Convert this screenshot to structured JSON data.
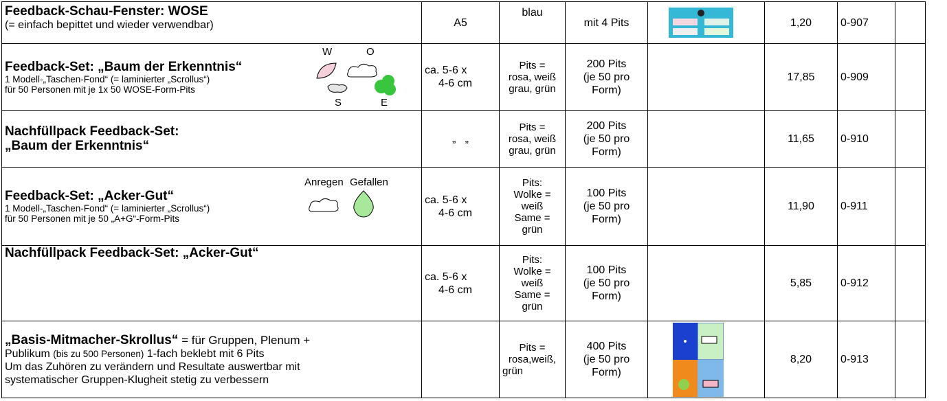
{
  "table": {
    "rows": [
      {
        "title": "Feedback-Schau-Fenster: WOSE",
        "details": [
          "(= einfach bepittet und wieder verwendbar)"
        ],
        "size": [
          "A5"
        ],
        "colors": [
          "blau"
        ],
        "pits": [
          "mit 4 Pits"
        ],
        "price": "1,20",
        "code": "0-907"
      },
      {
        "title": "Feedback-Set: „Baum der Erkenntnis“",
        "details": [
          "1 Modell-„Taschen-Fond“ (= laminierter „Scrollus“)",
          "für 50 Personen mit je 1x 50 WOSE-Form-Pits"
        ],
        "icon_labels": [
          "W",
          "O",
          "S",
          "E"
        ],
        "size": [
          "ca. 5-6 x",
          "4-6 cm"
        ],
        "colors": [
          "Pits =",
          "rosa, weiß",
          "grau, grün"
        ],
        "pits": [
          "200 Pits",
          "(je 50 pro",
          "Form)"
        ],
        "price": "17,85",
        "code": "0-909"
      },
      {
        "title_lines": [
          "Nachfüllpack Feedback-Set:",
          "„Baum der Erkenntnis“"
        ],
        "size": [
          "„   „"
        ],
        "colors": [
          "Pits =",
          "rosa, weiß",
          "grau, grün"
        ],
        "pits": [
          "200 Pits",
          "(je 50 pro",
          "Form)"
        ],
        "price": "11,65",
        "code": "0-910"
      },
      {
        "title": "Feedback-Set: „Acker-Gut“",
        "details": [
          "1 Modell-„Taschen-Fond“ (= laminierter „Scrollus“)",
          "für 50 Personen mit je 50 „A+G“-Form-Pits"
        ],
        "icon_labels": [
          "Anregen",
          "Gefallen"
        ],
        "size": [
          "ca. 5-6 x",
          "4-6 cm"
        ],
        "colors": [
          "Pits:",
          "Wolke =",
          "weiß",
          "Same =",
          "grün"
        ],
        "pits": [
          "100 Pits",
          "(je 50 pro",
          "Form)"
        ],
        "price": "11,90",
        "code": "0-911"
      },
      {
        "title": "Nachfüllpack Feedback-Set: „Acker-Gut“",
        "size": [
          "ca. 5-6 x",
          "4-6 cm"
        ],
        "colors": [
          "Pits:",
          "Wolke =",
          "weiß",
          "Same =",
          "grün"
        ],
        "pits": [
          "100 Pits",
          "(je 50 pro",
          "Form)"
        ],
        "price": "5,85",
        "code": "0-912"
      },
      {
        "title": "„Basis-Mitmacher-Skrollus“",
        "details": [
          " = für Gruppen, Plenum +",
          "Publikum",
          "(bis zu 500 Personen)",
          " 1-fach beklebt mit 6 Pits",
          "Um das Zuhören zu verändern und Resultate auswertbar mit",
          "systematischer Gruppen-Klugheit stetig zu verbessern"
        ],
        "colors": [
          "Pits =",
          "rosa,weiß,",
          "grün"
        ],
        "pits": [
          "400 Pits",
          "(je 50 pro",
          "Form)"
        ],
        "price": "8,20",
        "code": "0-913"
      }
    ]
  }
}
